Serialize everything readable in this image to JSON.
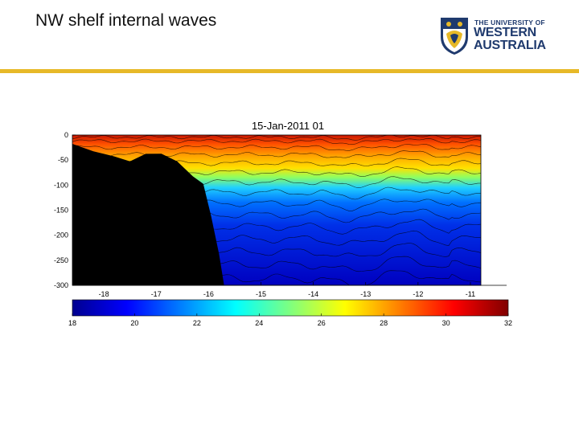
{
  "slide": {
    "title": "NW shelf internal waves",
    "accent_color": "#e7b928",
    "logo": {
      "line1": "THE UNIVERSITY OF",
      "line2": "WESTERN",
      "line3": "AUSTRALIA",
      "color": "#1f3a6e",
      "icon": "university-crest-icon"
    }
  },
  "chart_data": {
    "type": "heatmap",
    "title": "15-Jan-2011  01",
    "xlabel": "",
    "ylabel": "",
    "x_ticks": [
      "-18",
      "-17",
      "-16",
      "-15",
      "-14",
      "-13",
      "-12",
      "-11"
    ],
    "y_ticks": [
      "0",
      "-50",
      "-100",
      "-150",
      "-200",
      "-250",
      "-300"
    ],
    "ylim": [
      -300,
      0
    ],
    "xlim": [
      -18.6,
      -10.8
    ],
    "colorbar": {
      "ticks": [
        "18",
        "20",
        "22",
        "24",
        "26",
        "28",
        "30",
        "32"
      ],
      "range": [
        18,
        32
      ],
      "colormap": "jet"
    },
    "bathymetry": {
      "x": [
        -18.6,
        -18.2,
        -17.8,
        -17.5,
        -17.2,
        -16.9,
        -16.6,
        -16.3,
        -16.1,
        -15.95,
        -15.8,
        -15.7
      ],
      "depth": [
        -20,
        -30,
        -45,
        -50,
        -40,
        -35,
        -55,
        -80,
        -100,
        -160,
        -240,
        -300
      ]
    },
    "surface_temperature": 31,
    "bottom_temperature": 18.5,
    "isotherm_count": 16
  }
}
